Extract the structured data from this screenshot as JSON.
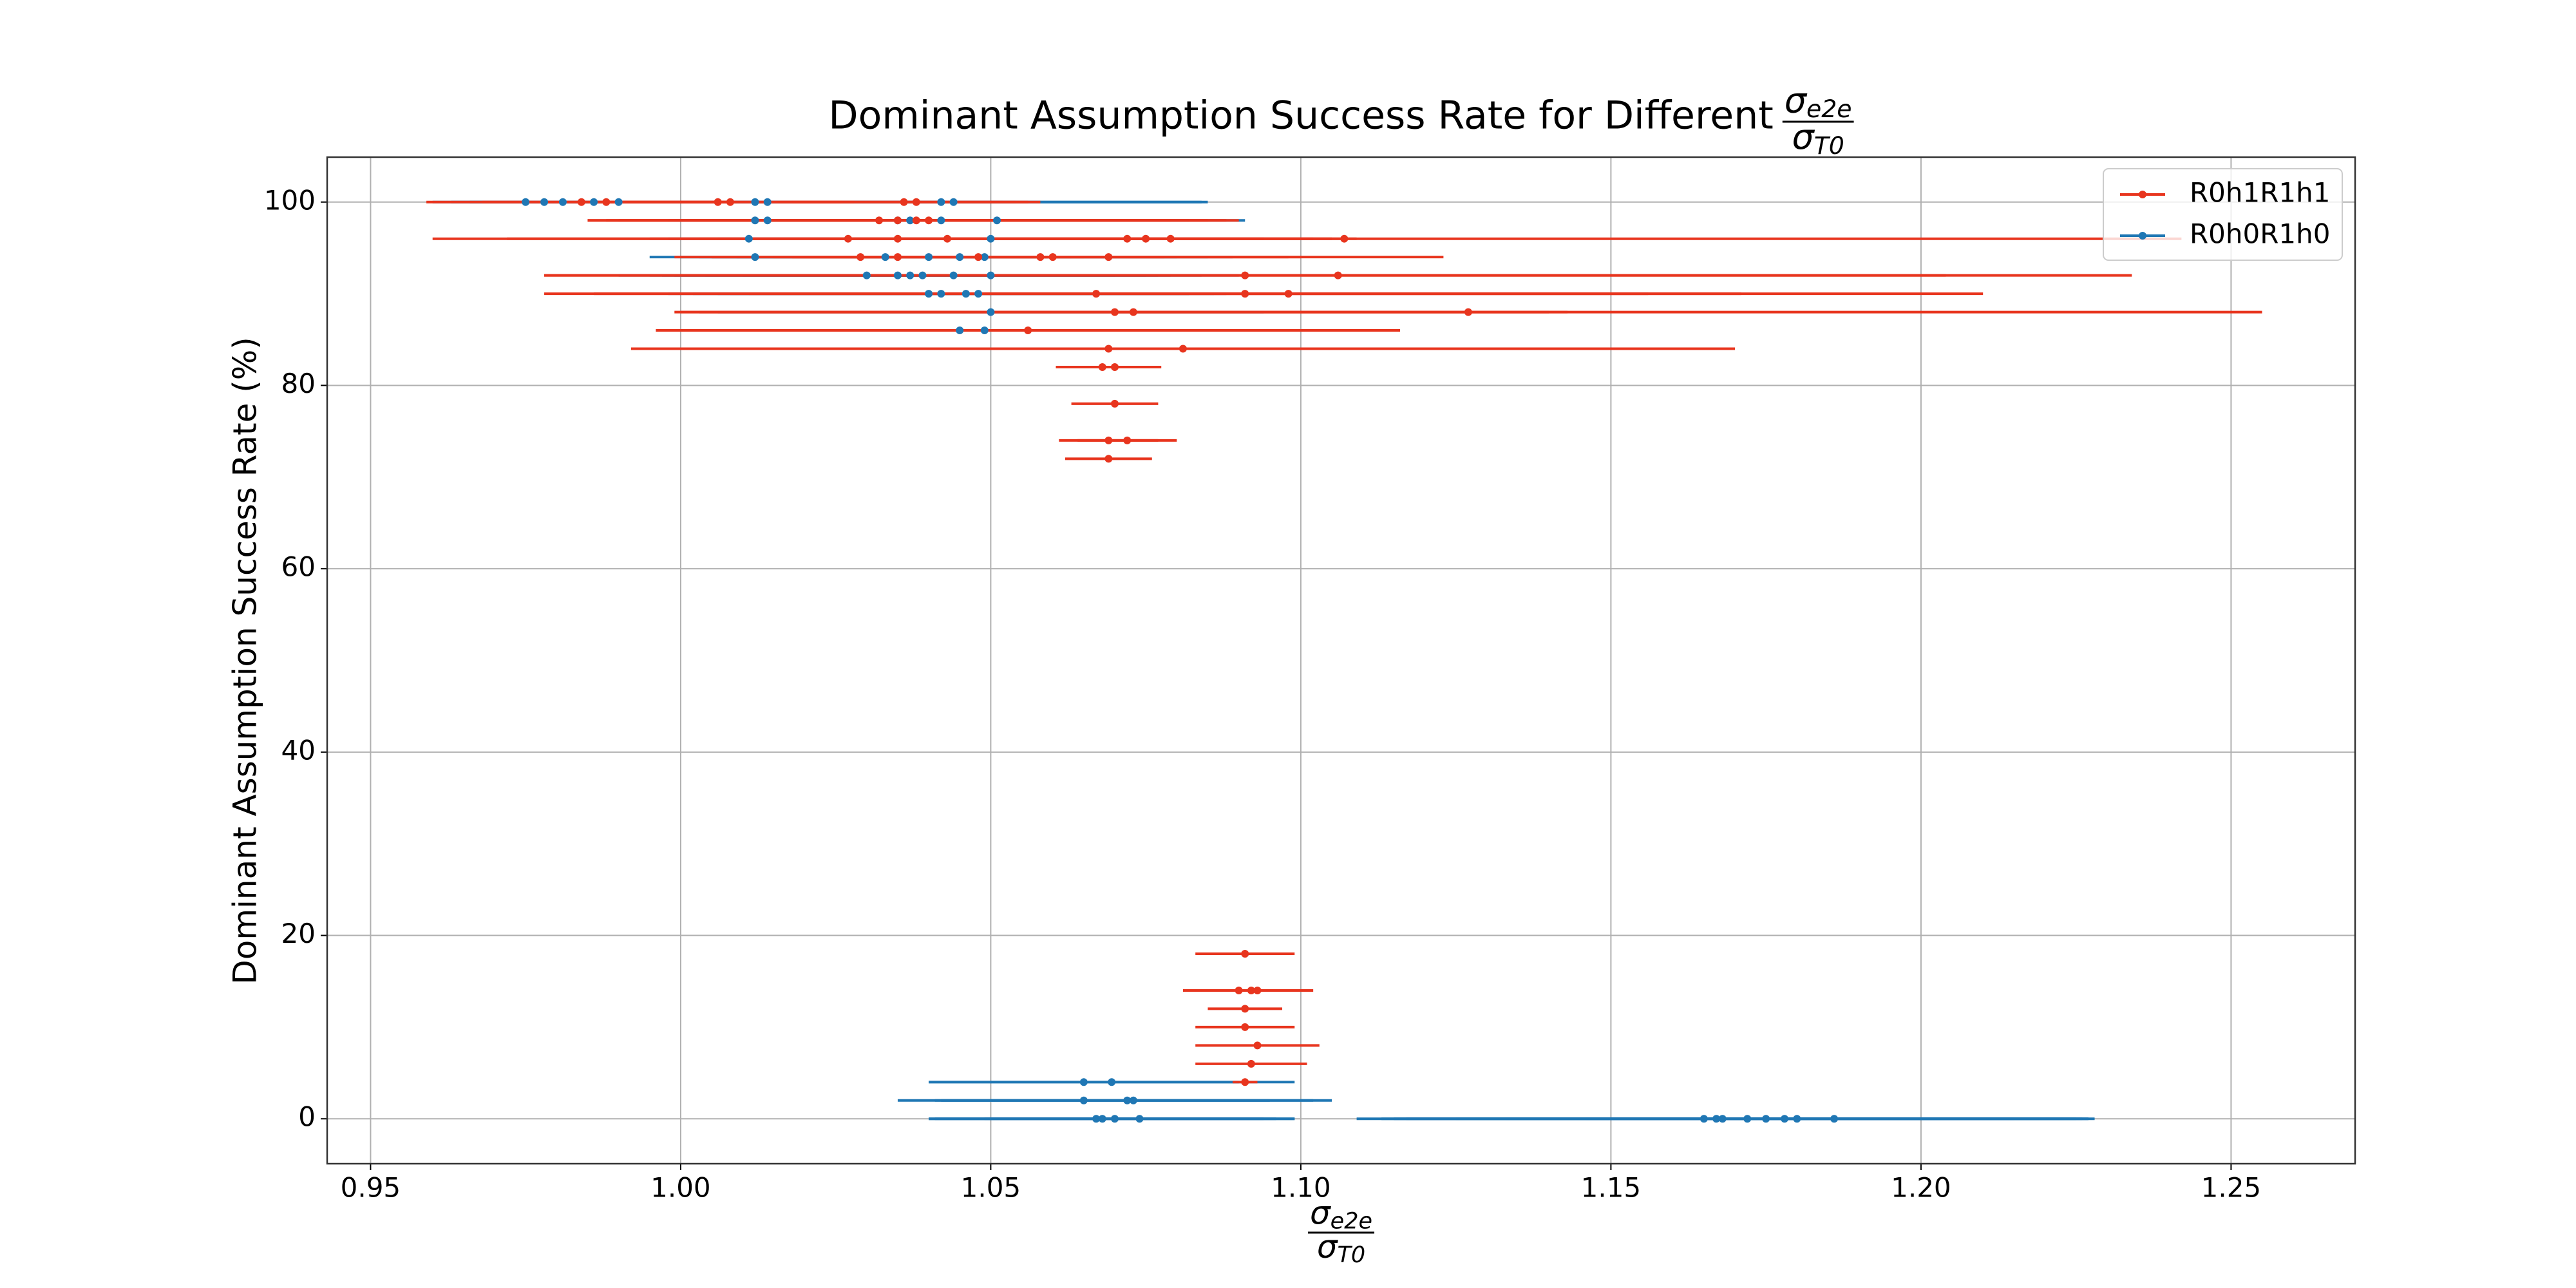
{
  "chart_data": {
    "type": "errorbar",
    "title": {
      "text": "Dominant Assumption Success Rate for Different",
      "fraction": {
        "numerator": "σ",
        "numerator_subscript": "e2e",
        "denominator": "σ",
        "denominator_subscript": "T0"
      }
    },
    "x_label": {
      "numerator": "σ",
      "numerator_subscript": "e2e",
      "denominator": "σ",
      "denominator_subscript": "T0"
    },
    "y_label": "Dominant Assumption Success Rate (%)",
    "xlim": [
      0.943,
      1.27
    ],
    "ylim": [
      -4.9,
      104.9
    ],
    "xticks": [
      0.95,
      {
        "value": 1,
        "label": "1.00"
      },
      1.05,
      {
        "value": 1.1,
        "label": "1.10"
      },
      1.15,
      {
        "value": 1.2,
        "label": "1.20"
      },
      1.25
    ],
    "yticks": [
      0,
      20,
      40,
      60,
      80,
      100
    ],
    "grid": true,
    "legend": "upper right",
    "series": [
      {
        "name": "R0h1R1h1",
        "color": "#e8351e",
        "x": [
          0.984,
          0.988,
          1.006,
          1.008,
          1.036,
          1.038,
          1.032,
          1.035,
          1.038,
          1.04,
          1.027,
          1.035,
          1.043,
          1.072,
          1.075,
          1.079,
          1.107,
          1.029,
          1.035,
          1.048,
          1.058,
          1.06,
          1.069,
          1.091,
          1.106,
          1.067,
          1.091,
          1.098,
          1.07,
          1.073,
          1.127,
          1.056,
          1.069,
          1.081,
          1.068,
          1.07,
          1.07,
          1.069,
          1.072,
          1.069,
          1.091,
          1.09,
          1.092,
          1.093,
          1.091,
          1.091,
          1.093,
          1.092,
          1.091
        ],
        "values": [
          100,
          100,
          100,
          100,
          100,
          100,
          98,
          98,
          98,
          98,
          96,
          96,
          96,
          96,
          96,
          96,
          96,
          94,
          94,
          94,
          94,
          94,
          94,
          92,
          92,
          90,
          90,
          90,
          88,
          88,
          88,
          86,
          84,
          84,
          82,
          82,
          78,
          74,
          74,
          72,
          18,
          14,
          14,
          14,
          12,
          10,
          8,
          6,
          4
        ],
        "xerr": [
          0.025,
          0.02,
          0.02,
          0.02,
          0.02,
          0.02,
          0.047,
          0.05,
          0.05,
          0.05,
          0.067,
          0.04,
          0.04,
          0.03,
          0.03,
          0.03,
          0.135,
          0.03,
          0.03,
          0.03,
          0.04,
          0.04,
          0.054,
          0.113,
          0.128,
          0.089,
          0.08,
          0.112,
          0.07,
          0.07,
          0.128,
          0.06,
          0.07,
          0.089,
          0.0075,
          0.0075,
          0.007,
          0.008,
          0.008,
          0.007,
          0.008,
          0.009,
          0.009,
          0.009,
          0.006,
          0.008,
          0.01,
          0.009,
          0.002
        ]
      },
      {
        "name": "R0h0R1h0",
        "color": "#1f77b4",
        "x": [
          0.975,
          0.978,
          0.981,
          0.986,
          0.99,
          1.012,
          1.014,
          1.042,
          1.044,
          1.012,
          1.014,
          1.035,
          1.037,
          1.042,
          1.051,
          1.011,
          1.05,
          1.012,
          1.033,
          1.04,
          1.045,
          1.049,
          1.03,
          1.035,
          1.037,
          1.039,
          1.044,
          1.05,
          1.04,
          1.042,
          1.046,
          1.048,
          1.05,
          1.045,
          1.049,
          1.065,
          1.0695,
          1.065,
          1.072,
          1.073,
          1.067,
          1.068,
          1.07,
          1.074,
          1.165,
          1.168,
          1.172,
          1.175,
          1.178,
          1.18,
          1.167,
          1.186
        ],
        "values": [
          100,
          100,
          100,
          100,
          100,
          100,
          100,
          100,
          100,
          98,
          98,
          98,
          98,
          98,
          98,
          96,
          96,
          94,
          94,
          94,
          94,
          94,
          92,
          92,
          92,
          92,
          92,
          92,
          90,
          90,
          90,
          90,
          88,
          86,
          86,
          4,
          4,
          2,
          2,
          2,
          0,
          0,
          0,
          0,
          0,
          0,
          0,
          0,
          0,
          0,
          0,
          0
        ],
        "xerr": [
          0.015,
          0.015,
          0.015,
          0.02,
          0.02,
          0.04,
          0.04,
          0.043,
          0.04,
          0.014,
          0.015,
          0.03,
          0.03,
          0.04,
          0.04,
          0.013,
          0.044,
          0.017,
          0.03,
          0.04,
          0.04,
          0.04,
          0.04,
          0.04,
          0.04,
          0.04,
          0.04,
          0.04,
          0.042,
          0.04,
          0.04,
          0.04,
          0.044,
          0.035,
          0.04,
          0.025,
          0.0295,
          0.03,
          0.03,
          0.032,
          0.027,
          0.028,
          0.029,
          0.025,
          0.05,
          0.055,
          0.055,
          0.05,
          0.05,
          0.047,
          0.058,
          0.04
        ]
      }
    ]
  }
}
